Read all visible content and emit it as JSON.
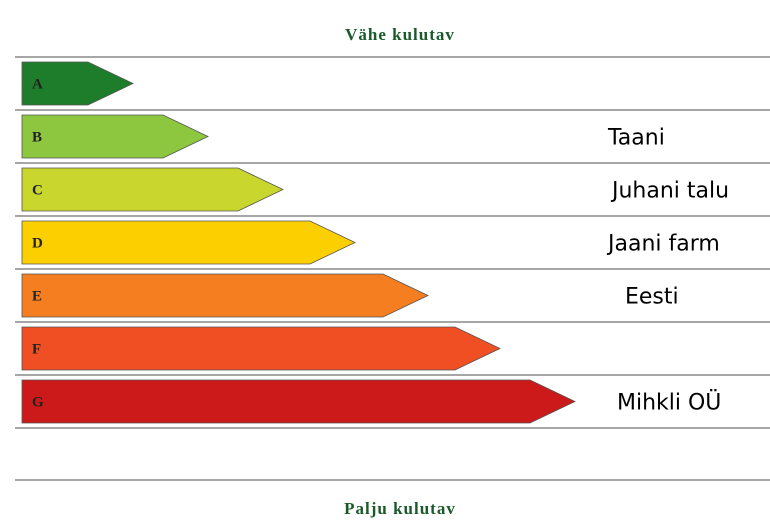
{
  "header": {
    "title": "Vähe kulutav"
  },
  "classes": [
    {
      "letter": "A"
    },
    {
      "letter": "B",
      "label": "Taani"
    },
    {
      "letter": "C",
      "label": "Juhani talu"
    },
    {
      "letter": "D",
      "label": "Jaani farm"
    },
    {
      "letter": "E",
      "label": "Eesti"
    },
    {
      "letter": "F"
    },
    {
      "letter": "G",
      "label": "Mihkli OÜ"
    }
  ],
  "footer": {
    "title": "Palju kulutav"
  }
}
